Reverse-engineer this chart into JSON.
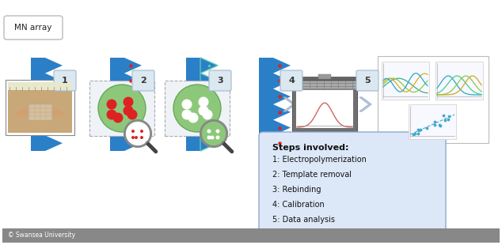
{
  "bg_color": "#e8eef5",
  "white_bg": "#ffffff",
  "title_box_text": "MN array",
  "steps_title": "Steps involved:",
  "steps": [
    "1: Electropolymerization",
    "2: Template removal",
    "3: Rebinding",
    "4: Calibration",
    "5: Data analysis"
  ],
  "step_numbers": [
    "1",
    "2",
    "3",
    "4",
    "5"
  ],
  "footer_text": "© Swansea University",
  "needle_blue": "#2b7fc7",
  "needle_teal": "#5bc8b0",
  "needle_green_edge": "#7dc87a",
  "arrow_fill": "#c8d8e8",
  "arrow_edge": "#a0b0c8",
  "step_box_fill": "#dce8f0",
  "step_box_edge": "#a0b8d0",
  "info_box_fill": "#dce8f8",
  "info_box_edge": "#90aac8",
  "red_dot": "#dd2222",
  "green_fill": "#8dc87a",
  "green_edge": "#6aa85a",
  "mag_handle": "#444444",
  "mag_ring": "#888888",
  "laptop_body": "#707070",
  "laptop_screen_bg": "#d8d8d8",
  "chart_box_bg": "#ffffff",
  "chart_box_edge": "#bbbbbb",
  "footer_bg": "#888888"
}
